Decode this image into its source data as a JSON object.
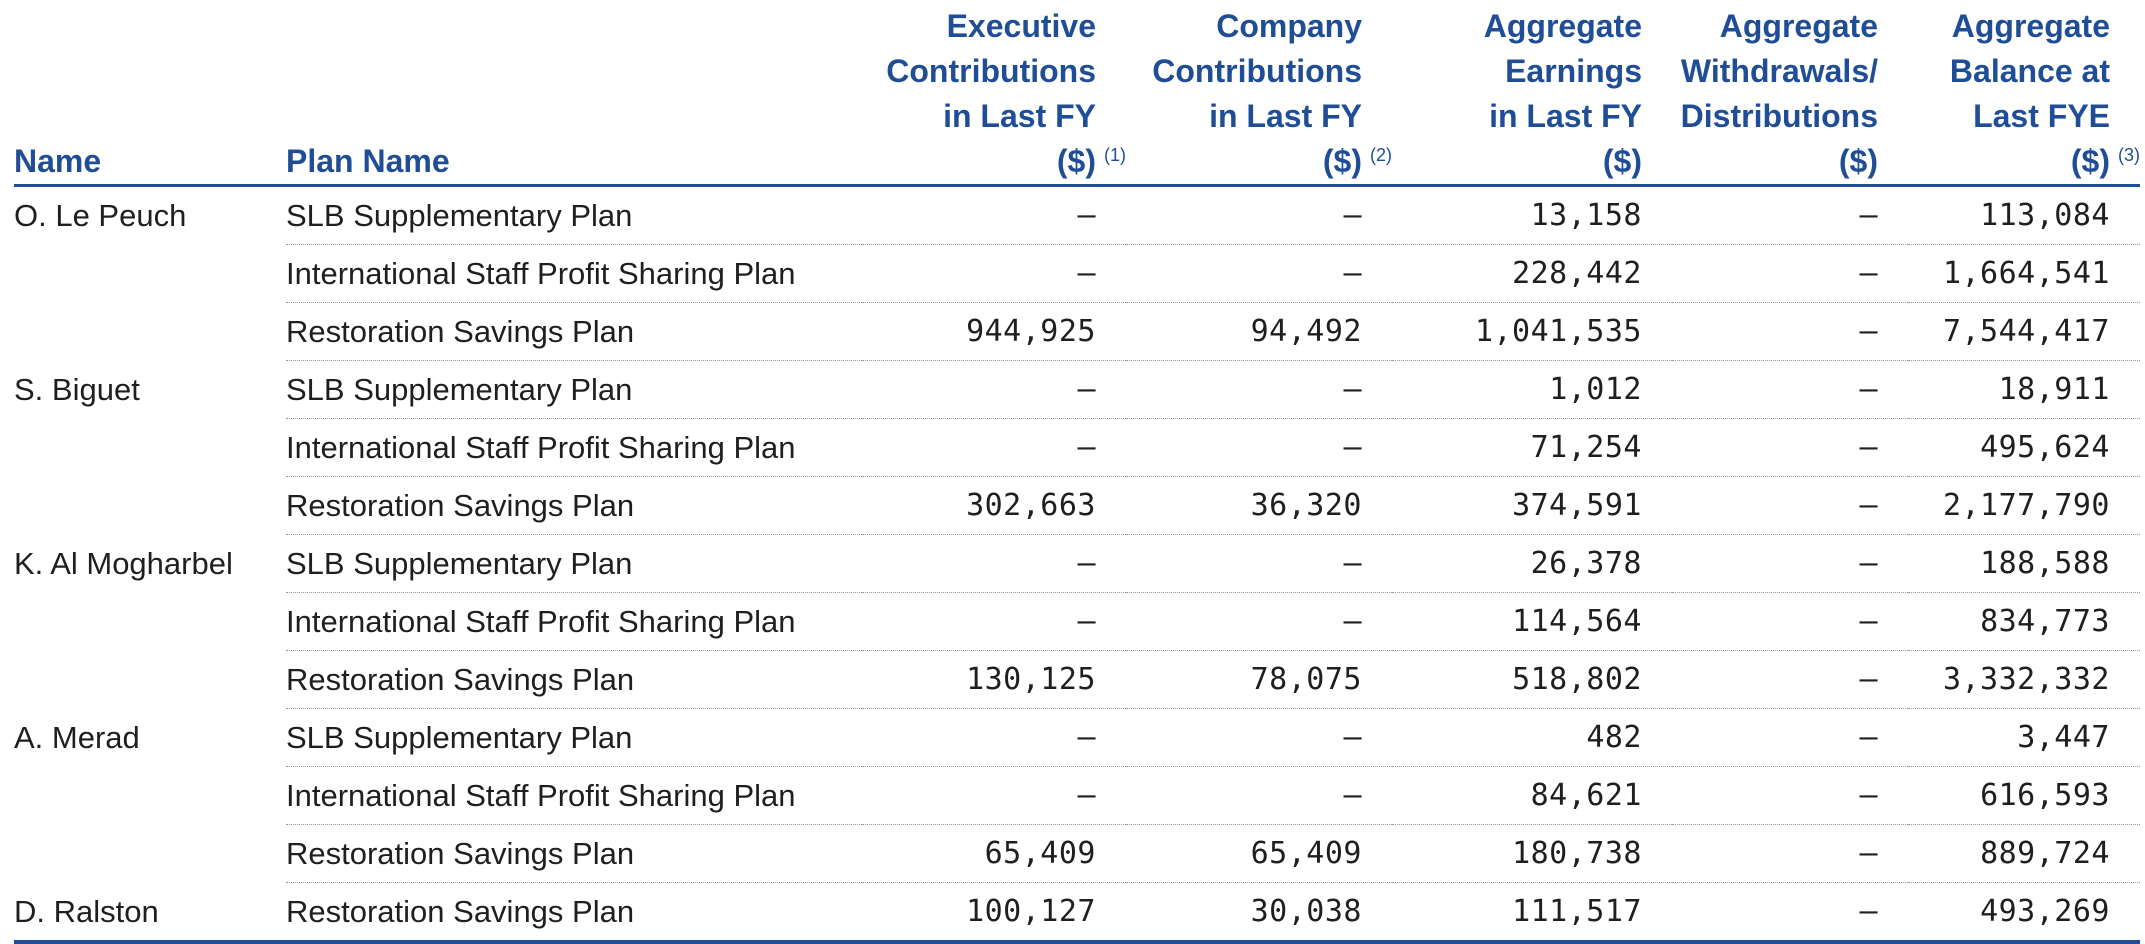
{
  "table": {
    "headers": {
      "name": "Name",
      "plan": "Plan Name",
      "exec": [
        "Executive",
        "Contributions",
        "in Last FY",
        "($)"
      ],
      "exec_note": "(1)",
      "comp": [
        "Company",
        "Contributions",
        "in Last FY",
        "($)"
      ],
      "comp_note": "(2)",
      "earn": [
        "Aggregate",
        "Earnings",
        "in Last FY",
        "($)"
      ],
      "with": [
        "Aggregate",
        "Withdrawals/",
        "Distributions",
        "($)"
      ],
      "bal": [
        "Aggregate",
        "Balance at",
        "Last FYE",
        "($)"
      ],
      "bal_note": "(3)"
    },
    "groups": [
      {
        "name": "O. Le Peuch",
        "rows": [
          {
            "plan": "SLB Supplementary Plan",
            "exec": "—",
            "comp": "—",
            "earn": "13,158",
            "with": "—",
            "bal": "113,084"
          },
          {
            "plan": "International Staff Profit Sharing Plan",
            "exec": "—",
            "comp": "—",
            "earn": "228,442",
            "with": "—",
            "bal": "1,664,541"
          },
          {
            "plan": "Restoration Savings Plan",
            "exec": "944,925",
            "comp": "94,492",
            "earn": "1,041,535",
            "with": "—",
            "bal": "7,544,417"
          }
        ]
      },
      {
        "name": "S. Biguet",
        "rows": [
          {
            "plan": "SLB Supplementary Plan",
            "exec": "—",
            "comp": "—",
            "earn": "1,012",
            "with": "—",
            "bal": "18,911"
          },
          {
            "plan": "International Staff Profit Sharing Plan",
            "exec": "—",
            "comp": "—",
            "earn": "71,254",
            "with": "—",
            "bal": "495,624"
          },
          {
            "plan": "Restoration Savings Plan",
            "exec": "302,663",
            "comp": "36,320",
            "earn": "374,591",
            "with": "—",
            "bal": "2,177,790"
          }
        ]
      },
      {
        "name": "K. Al Mogharbel",
        "rows": [
          {
            "plan": "SLB Supplementary Plan",
            "exec": "—",
            "comp": "—",
            "earn": "26,378",
            "with": "—",
            "bal": "188,588"
          },
          {
            "plan": "International Staff Profit Sharing Plan",
            "exec": "—",
            "comp": "—",
            "earn": "114,564",
            "with": "—",
            "bal": "834,773"
          },
          {
            "plan": "Restoration Savings Plan",
            "exec": "130,125",
            "comp": "78,075",
            "earn": "518,802",
            "with": "—",
            "bal": "3,332,332"
          }
        ]
      },
      {
        "name": "A. Merad",
        "rows": [
          {
            "plan": "SLB Supplementary Plan",
            "exec": "—",
            "comp": "—",
            "earn": "482",
            "with": "—",
            "bal": "3,447"
          },
          {
            "plan": "International Staff Profit Sharing Plan",
            "exec": "—",
            "comp": "—",
            "earn": "84,621",
            "with": "—",
            "bal": "616,593"
          },
          {
            "plan": "Restoration Savings Plan",
            "exec": "65,409",
            "comp": "65,409",
            "earn": "180,738",
            "with": "—",
            "bal": "889,724"
          }
        ]
      },
      {
        "name": "D. Ralston",
        "rows": [
          {
            "plan": "Restoration Savings Plan",
            "exec": "100,127",
            "comp": "30,038",
            "earn": "111,517",
            "with": "—",
            "bal": "493,269"
          }
        ]
      }
    ]
  }
}
